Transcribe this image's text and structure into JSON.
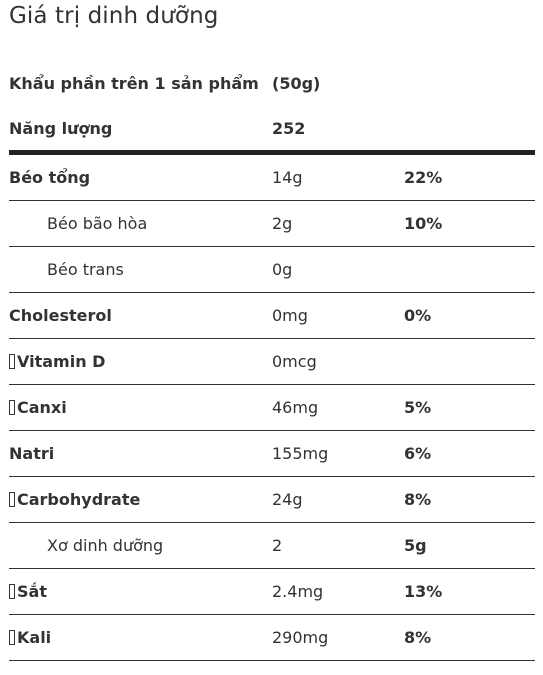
{
  "title": "Giá trị dinh dưỡng",
  "serving": {
    "label": "Khẩu phần trên 1 sản phẩm",
    "value": "(50g)"
  },
  "energy": {
    "label": "Năng lượng",
    "value": "252"
  },
  "nutrients": [
    {
      "name": "Béo tổng",
      "amount": "14g",
      "percent": "22%",
      "level": "main",
      "icon": false
    },
    {
      "name": "Béo bão hòa",
      "amount": "2g",
      "percent": "10%",
      "level": "sub",
      "icon": false
    },
    {
      "name": "Béo trans",
      "amount": "0g",
      "percent": "",
      "level": "sub",
      "icon": false
    },
    {
      "name": "Cholesterol",
      "amount": "0mg",
      "percent": "0%",
      "level": "main",
      "icon": false
    },
    {
      "name": "Vitamin D",
      "amount": "0mcg",
      "percent": "",
      "level": "main",
      "icon": true
    },
    {
      "name": "Canxi",
      "amount": "46mg",
      "percent": "5%",
      "level": "main",
      "icon": true
    },
    {
      "name": "Natri",
      "amount": "155mg",
      "percent": "6%",
      "level": "main",
      "icon": false
    },
    {
      "name": "Carbohydrate",
      "amount": "24g",
      "percent": "8%",
      "level": "main",
      "icon": true
    },
    {
      "name": "Xơ dinh dưỡng",
      "amount": "2",
      "percent": "5g",
      "level": "sub",
      "icon": false
    },
    {
      "name": "Sắt",
      "amount": "2.4mg",
      "percent": "13%",
      "level": "main",
      "icon": true
    },
    {
      "name": "Kali",
      "amount": "290mg",
      "percent": "8%",
      "level": "main",
      "icon": true
    }
  ]
}
